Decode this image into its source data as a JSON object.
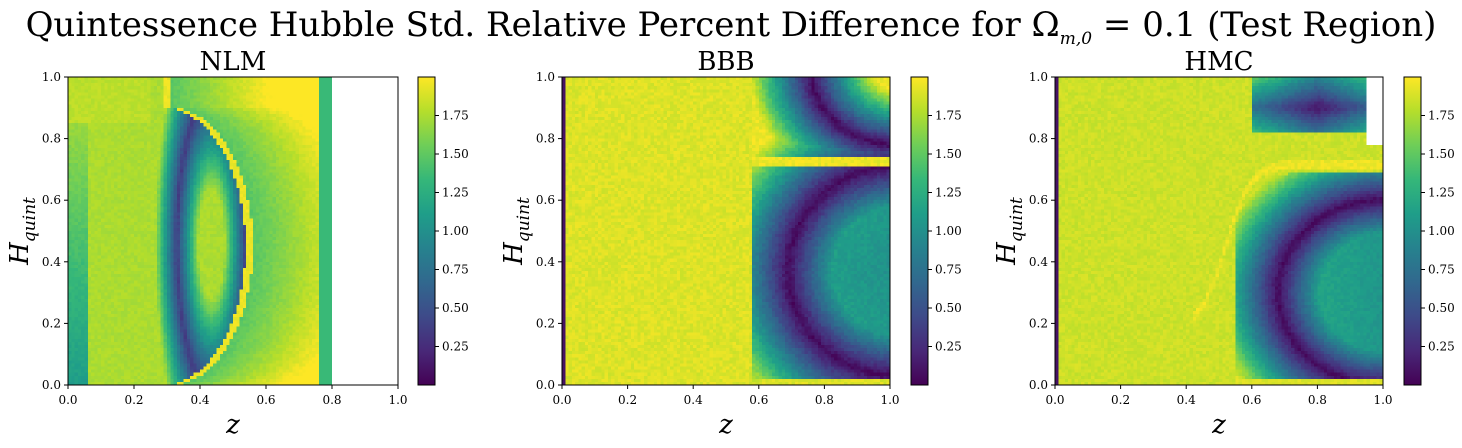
{
  "figure": {
    "title_main": "Quintessence Hubble Std. Relative Percent Difference for Ω",
    "title_sub": "m,0",
    "title_tail": " = 0.1 (Test Region)"
  },
  "colorscale": {
    "name": "viridis",
    "stops": [
      "#440154",
      "#482878",
      "#3e4a89",
      "#31688e",
      "#26828e",
      "#1f9e89",
      "#35b779",
      "#6ece58",
      "#b5de2b",
      "#fde725"
    ]
  },
  "chart_data": [
    {
      "type": "heatmap",
      "title": "NLM",
      "xlabel": "z",
      "ylabel_main": "H",
      "ylabel_sub": "quint",
      "xlim": [
        0,
        1
      ],
      "ylim": [
        0,
        1
      ],
      "x_ticks": [
        "0.0",
        "0.2",
        "0.4",
        "0.6",
        "0.8",
        "1.0"
      ],
      "y_ticks": [
        "0.0",
        "0.2",
        "0.4",
        "0.6",
        "0.8",
        "1.0"
      ],
      "colorbar": {
        "range": [
          0.0,
          2.0
        ],
        "ticks": [
          "0.25",
          "0.50",
          "0.75",
          "1.00",
          "1.25",
          "1.50",
          "1.75"
        ]
      },
      "grid": false,
      "features": "Low values (~0) in a ring near z≈0.35–0.5, a bright (~1.9) arc from (0.28,0.85) curving to z≈0.55 at H≈0.45 and back to (0.43,0), values ~1.5–1.8 for z 0.6–0.77, blank (no data) for z > 0.8"
    },
    {
      "type": "heatmap",
      "title": "BBB",
      "xlabel": "z",
      "ylabel_main": "H",
      "ylabel_sub": "quint",
      "xlim": [
        0,
        1
      ],
      "ylim": [
        0,
        1
      ],
      "x_ticks": [
        "0.0",
        "0.2",
        "0.4",
        "0.6",
        "0.8",
        "1.0"
      ],
      "y_ticks": [
        "0.0",
        "0.2",
        "0.4",
        "0.6",
        "0.8",
        "1.0"
      ],
      "colorbar": {
        "range": [
          0.0,
          2.0
        ],
        "ticks": [
          "0.25",
          "0.50",
          "0.75",
          "1.00",
          "1.25",
          "1.50",
          "1.75"
        ]
      },
      "grid": false,
      "features": "Mostly bright (~1.9) for z < 0.6, a dark (~0) curve near z≈0.7 with a ridge at H≈0.72, dark band near H≈0.02, interior green-teal (~1.2) region for z 0.7–1.0"
    },
    {
      "type": "heatmap",
      "title": "HMC",
      "xlabel": "z",
      "ylabel_main": "H",
      "ylabel_sub": "quint",
      "xlim": [
        0,
        1
      ],
      "ylim": [
        0,
        1
      ],
      "x_ticks": [
        "0.0",
        "0.2",
        "0.4",
        "0.6",
        "0.8",
        "1.0"
      ],
      "y_ticks": [
        "0.0",
        "0.2",
        "0.4",
        "0.6",
        "0.8",
        "1.0"
      ],
      "colorbar": {
        "range": [
          0.0,
          2.0
        ],
        "ticks": [
          "0.25",
          "0.50",
          "0.75",
          "1.00",
          "1.25",
          "1.50",
          "1.75"
        ]
      },
      "grid": false,
      "features": "Mostly bright (~1.9), dark blob top-right (z 0.65–0.95, H 0.85–1.0), bright ridge rising from (0.42,0.45) to H≈0.72 at z≈0.7, dark (~0) ring around a teal (~1.1) region for z 0.65–1.0, H 0.05–0.6"
    }
  ]
}
